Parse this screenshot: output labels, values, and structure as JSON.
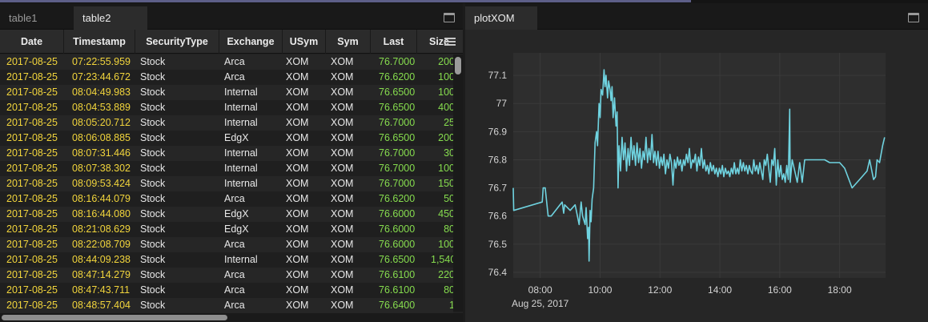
{
  "left_panel": {
    "tabs": [
      {
        "label": "table1",
        "active": false
      },
      {
        "label": "table2",
        "active": true
      }
    ],
    "columns": [
      "Date",
      "Timestamp",
      "SecurityType",
      "Exchange",
      "USym",
      "Sym",
      "Last",
      "Size"
    ],
    "rows": [
      [
        "2017-08-25",
        "07:22:55.959",
        "Stock",
        "Arca",
        "XOM",
        "XOM",
        "76.7000",
        "200"
      ],
      [
        "2017-08-25",
        "07:23:44.672",
        "Stock",
        "Arca",
        "XOM",
        "XOM",
        "76.6200",
        "100"
      ],
      [
        "2017-08-25",
        "08:04:49.983",
        "Stock",
        "Internal",
        "XOM",
        "XOM",
        "76.6500",
        "100"
      ],
      [
        "2017-08-25",
        "08:04:53.889",
        "Stock",
        "Internal",
        "XOM",
        "XOM",
        "76.6500",
        "400"
      ],
      [
        "2017-08-25",
        "08:05:20.712",
        "Stock",
        "Internal",
        "XOM",
        "XOM",
        "76.7000",
        "25"
      ],
      [
        "2017-08-25",
        "08:06:08.885",
        "Stock",
        "EdgX",
        "XOM",
        "XOM",
        "76.6500",
        "200"
      ],
      [
        "2017-08-25",
        "08:07:31.446",
        "Stock",
        "Internal",
        "XOM",
        "XOM",
        "76.7000",
        "30"
      ],
      [
        "2017-08-25",
        "08:07:38.302",
        "Stock",
        "Internal",
        "XOM",
        "XOM",
        "76.7000",
        "100"
      ],
      [
        "2017-08-25",
        "08:09:53.424",
        "Stock",
        "Internal",
        "XOM",
        "XOM",
        "76.7000",
        "150"
      ],
      [
        "2017-08-25",
        "08:16:44.079",
        "Stock",
        "Arca",
        "XOM",
        "XOM",
        "76.6200",
        "50"
      ],
      [
        "2017-08-25",
        "08:16:44.080",
        "Stock",
        "EdgX",
        "XOM",
        "XOM",
        "76.6000",
        "450"
      ],
      [
        "2017-08-25",
        "08:21:08.629",
        "Stock",
        "EdgX",
        "XOM",
        "XOM",
        "76.6000",
        "80"
      ],
      [
        "2017-08-25",
        "08:22:08.709",
        "Stock",
        "Arca",
        "XOM",
        "XOM",
        "76.6000",
        "100"
      ],
      [
        "2017-08-25",
        "08:44:09.238",
        "Stock",
        "Internal",
        "XOM",
        "XOM",
        "76.6500",
        "1,540"
      ],
      [
        "2017-08-25",
        "08:47:14.279",
        "Stock",
        "Arca",
        "XOM",
        "XOM",
        "76.6100",
        "220"
      ],
      [
        "2017-08-25",
        "08:47:43.711",
        "Stock",
        "Arca",
        "XOM",
        "XOM",
        "76.6100",
        "80"
      ],
      [
        "2017-08-25",
        "08:48:57.404",
        "Stock",
        "Arca",
        "XOM",
        "XOM",
        "76.6400",
        "1"
      ]
    ]
  },
  "right_panel": {
    "tab_label": "plotXOM"
  },
  "colors": {
    "date_text": "#f2d53c",
    "numeric_text": "#86dc4e",
    "line": "#6fd3e0",
    "plot_background": "#2e2e2e",
    "grid": "#3a3a3a"
  },
  "chart_data": {
    "type": "line",
    "title": "",
    "xlabel": "",
    "ylabel": "",
    "x_ticks": [
      "08:00",
      "10:00",
      "12:00",
      "14:00",
      "16:00",
      "18:00"
    ],
    "x_sublabel": "Aug 25, 2017",
    "y_ticks": [
      "76.4",
      "76.5",
      "76.6",
      "76.7",
      "76.8",
      "76.9",
      "77",
      "77.1"
    ],
    "xlim": [
      "07:06",
      "19:32"
    ],
    "ylim": [
      76.38,
      77.18
    ],
    "grid": true,
    "series": [
      {
        "points": [
          [
            "07:06",
            76.7
          ],
          [
            "07:07",
            76.62
          ],
          [
            "08:04",
            76.65
          ],
          [
            "08:06",
            76.7
          ],
          [
            "08:07",
            76.7
          ],
          [
            "08:10",
            76.7
          ],
          [
            "08:16",
            76.6
          ],
          [
            "08:22",
            76.6
          ],
          [
            "08:44",
            76.65
          ],
          [
            "08:47",
            76.61
          ],
          [
            "08:49",
            76.64
          ],
          [
            "09:00",
            76.62
          ],
          [
            "09:10",
            76.64
          ],
          [
            "09:18",
            76.57
          ],
          [
            "09:22",
            76.65
          ],
          [
            "09:25",
            76.6
          ],
          [
            "09:30",
            76.57
          ],
          [
            "09:32",
            76.63
          ],
          [
            "09:35",
            76.52
          ],
          [
            "09:37",
            76.56
          ],
          [
            "09:38",
            76.44
          ],
          [
            "09:40",
            76.62
          ],
          [
            "09:42",
            76.58
          ],
          [
            "09:44",
            76.66
          ],
          [
            "09:47",
            76.7
          ],
          [
            "09:50",
            76.86
          ],
          [
            "09:53",
            76.9
          ],
          [
            "09:55",
            76.85
          ],
          [
            "09:58",
            77.0
          ],
          [
            "10:00",
            76.95
          ],
          [
            "10:02",
            77.05
          ],
          [
            "10:05",
            77.03
          ],
          [
            "10:08",
            77.12
          ],
          [
            "10:10",
            77.06
          ],
          [
            "10:12",
            77.1
          ],
          [
            "10:15",
            77.02
          ],
          [
            "10:17",
            77.08
          ],
          [
            "10:20",
            77.05
          ],
          [
            "10:22",
            77.01
          ],
          [
            "10:24",
            77.06
          ],
          [
            "10:26",
            76.95
          ],
          [
            "10:29",
            77.02
          ],
          [
            "10:32",
            76.92
          ],
          [
            "10:34",
            76.97
          ],
          [
            "10:36",
            76.7
          ],
          [
            "10:38",
            76.85
          ],
          [
            "10:41",
            76.76
          ],
          [
            "10:44",
            76.88
          ],
          [
            "10:47",
            76.8
          ],
          [
            "10:50",
            76.86
          ],
          [
            "10:53",
            76.76
          ],
          [
            "10:56",
            76.84
          ],
          [
            "10:59",
            76.78
          ],
          [
            "11:02",
            76.88
          ],
          [
            "11:05",
            76.8
          ],
          [
            "11:08",
            76.85
          ],
          [
            "11:11",
            76.78
          ],
          [
            "11:14",
            76.86
          ],
          [
            "11:17",
            76.79
          ],
          [
            "11:20",
            76.84
          ],
          [
            "11:23",
            76.77
          ],
          [
            "11:26",
            76.83
          ],
          [
            "11:29",
            76.8
          ],
          [
            "11:32",
            76.88
          ],
          [
            "11:35",
            76.79
          ],
          [
            "11:38",
            76.84
          ],
          [
            "11:41",
            76.8
          ],
          [
            "11:44",
            76.89
          ],
          [
            "11:47",
            76.79
          ],
          [
            "11:50",
            76.83
          ],
          [
            "11:53",
            76.78
          ],
          [
            "11:56",
            76.83
          ],
          [
            "11:59",
            76.77
          ],
          [
            "12:02",
            76.81
          ],
          [
            "12:05",
            76.78
          ],
          [
            "12:08",
            76.82
          ],
          [
            "12:11",
            76.75
          ],
          [
            "12:14",
            76.8
          ],
          [
            "12:17",
            76.77
          ],
          [
            "12:20",
            76.82
          ],
          [
            "12:23",
            76.79
          ],
          [
            "12:26",
            76.71
          ],
          [
            "12:29",
            76.8
          ],
          [
            "12:32",
            76.77
          ],
          [
            "12:35",
            76.81
          ],
          [
            "12:38",
            76.78
          ],
          [
            "12:41",
            76.8
          ],
          [
            "12:44",
            76.76
          ],
          [
            "12:47",
            76.8
          ],
          [
            "12:50",
            76.78
          ],
          [
            "12:53",
            76.82
          ],
          [
            "12:56",
            76.79
          ],
          [
            "12:59",
            76.84
          ],
          [
            "13:02",
            76.77
          ],
          [
            "13:05",
            76.8
          ],
          [
            "13:08",
            76.79
          ],
          [
            "13:11",
            76.82
          ],
          [
            "13:14",
            76.76
          ],
          [
            "13:17",
            76.81
          ],
          [
            "13:20",
            76.78
          ],
          [
            "13:23",
            76.84
          ],
          [
            "13:26",
            76.77
          ],
          [
            "13:29",
            76.8
          ],
          [
            "13:32",
            76.76
          ],
          [
            "13:35",
            76.78
          ],
          [
            "13:38",
            76.75
          ],
          [
            "13:41",
            76.79
          ],
          [
            "13:44",
            76.76
          ],
          [
            "13:47",
            76.78
          ],
          [
            "13:50",
            76.75
          ],
          [
            "13:53",
            76.77
          ],
          [
            "13:56",
            76.74
          ],
          [
            "13:59",
            76.77
          ],
          [
            "14:02",
            76.75
          ],
          [
            "14:05",
            76.78
          ],
          [
            "14:08",
            76.74
          ],
          [
            "14:11",
            76.77
          ],
          [
            "14:14",
            76.75
          ],
          [
            "14:17",
            76.76
          ],
          [
            "14:20",
            76.74
          ],
          [
            "14:23",
            76.77
          ],
          [
            "14:26",
            76.75
          ],
          [
            "14:29",
            76.79
          ],
          [
            "14:32",
            76.75
          ],
          [
            "14:35",
            76.77
          ],
          [
            "14:38",
            76.75
          ],
          [
            "14:41",
            76.8
          ],
          [
            "14:44",
            76.76
          ],
          [
            "14:47",
            76.79
          ],
          [
            "14:50",
            76.76
          ],
          [
            "14:53",
            76.78
          ],
          [
            "14:56",
            76.75
          ],
          [
            "14:59",
            76.78
          ],
          [
            "15:02",
            76.76
          ],
          [
            "15:05",
            76.75
          ],
          [
            "15:08",
            76.8
          ],
          [
            "15:11",
            76.76
          ],
          [
            "15:14",
            76.78
          ],
          [
            "15:17",
            76.75
          ],
          [
            "15:20",
            76.79
          ],
          [
            "15:23",
            76.76
          ],
          [
            "15:26",
            76.73
          ],
          [
            "15:29",
            76.8
          ],
          [
            "15:32",
            76.78
          ],
          [
            "15:35",
            76.82
          ],
          [
            "15:38",
            76.77
          ],
          [
            "15:41",
            76.72
          ],
          [
            "15:44",
            76.8
          ],
          [
            "15:47",
            76.78
          ],
          [
            "15:50",
            76.84
          ],
          [
            "15:53",
            76.71
          ],
          [
            "15:56",
            76.8
          ],
          [
            "15:59",
            76.74
          ],
          [
            "16:02",
            76.78
          ],
          [
            "16:05",
            76.73
          ],
          [
            "16:08",
            76.75
          ],
          [
            "16:11",
            76.72
          ],
          [
            "16:14",
            76.78
          ],
          [
            "16:17",
            76.73
          ],
          [
            "16:20",
            76.98
          ],
          [
            "16:21",
            76.72
          ],
          [
            "16:25",
            76.8
          ],
          [
            "16:30",
            76.76
          ],
          [
            "16:35",
            76.72
          ],
          [
            "16:40",
            76.79
          ],
          [
            "16:45",
            76.72
          ],
          [
            "16:50",
            76.8
          ],
          [
            "16:53",
            76.8
          ],
          [
            "17:30",
            76.8
          ],
          [
            "17:40",
            76.79
          ],
          [
            "18:00",
            76.79
          ],
          [
            "18:10",
            76.77
          ],
          [
            "18:25",
            76.7
          ],
          [
            "18:40",
            76.73
          ],
          [
            "18:55",
            76.76
          ],
          [
            "19:00",
            76.8
          ],
          [
            "19:08",
            76.73
          ],
          [
            "19:12",
            76.74
          ],
          [
            "19:15",
            76.8
          ],
          [
            "19:20",
            76.79
          ],
          [
            "19:26",
            76.85
          ],
          [
            "19:30",
            76.88
          ]
        ]
      }
    ]
  }
}
